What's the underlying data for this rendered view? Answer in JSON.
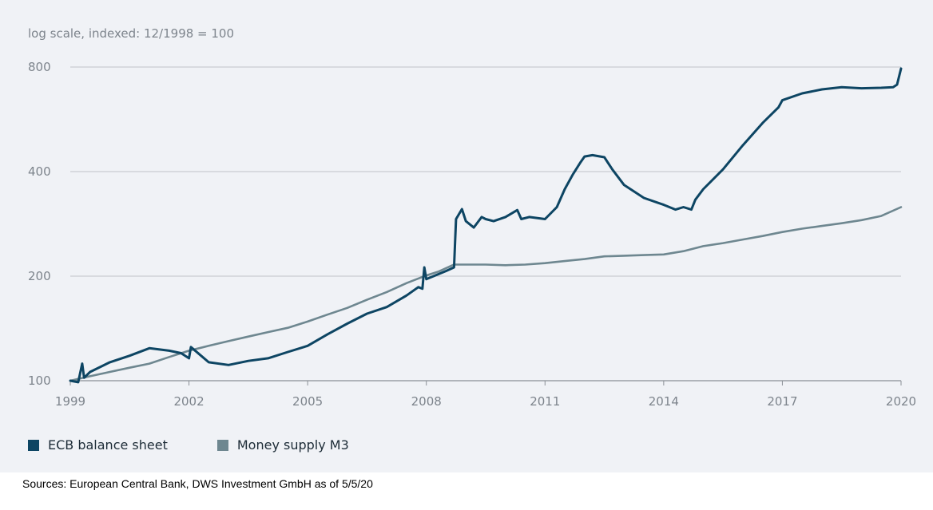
{
  "chart_data": {
    "type": "line",
    "subtitle": "log scale, indexed: 12/1998 = 100",
    "y_scale": "log",
    "ylim": [
      100,
      800
    ],
    "y_ticks": [
      100,
      200,
      400,
      800
    ],
    "y_tick_labels": [
      "100",
      "200",
      "400",
      "800"
    ],
    "xlim": [
      1999,
      2020
    ],
    "x_ticks": [
      1999,
      2002,
      2005,
      2008,
      2011,
      2014,
      2017,
      2020
    ],
    "x_tick_labels": [
      "1999",
      "2002",
      "2005",
      "2008",
      "2011",
      "2014",
      "2017",
      "2020"
    ],
    "grid": "horizontal",
    "legend": "bottom-left",
    "series": [
      {
        "name": "ECB balance sheet",
        "color": "#0d4563",
        "x": [
          1999.0,
          1999.2,
          1999.3,
          1999.35,
          1999.5,
          2000.0,
          2000.5,
          2001.0,
          2001.5,
          2001.8,
          2002.0,
          2002.05,
          2002.5,
          2003.0,
          2003.5,
          2004.0,
          2004.5,
          2005.0,
          2005.5,
          2006.0,
          2006.5,
          2007.0,
          2007.5,
          2007.8,
          2007.9,
          2007.95,
          2008.0,
          2008.5,
          2008.7,
          2008.75,
          2008.9,
          2009.0,
          2009.2,
          2009.4,
          2009.5,
          2009.7,
          2010.0,
          2010.3,
          2010.4,
          2010.6,
          2011.0,
          2011.3,
          2011.5,
          2011.7,
          2011.9,
          2012.0,
          2012.2,
          2012.5,
          2012.7,
          2013.0,
          2013.5,
          2014.0,
          2014.3,
          2014.5,
          2014.7,
          2014.8,
          2015.0,
          2015.5,
          2016.0,
          2016.5,
          2016.9,
          2017.0,
          2017.5,
          2018.0,
          2018.5,
          2019.0,
          2019.5,
          2019.8,
          2019.9,
          2020.0
        ],
        "values": [
          100,
          99,
          112,
          102,
          106,
          113,
          118,
          124,
          122,
          120,
          116,
          125,
          113,
          111,
          114,
          116,
          121,
          126,
          136,
          146,
          156,
          163,
          176,
          186,
          184,
          212,
          196,
          207,
          212,
          292,
          312,
          288,
          276,
          296,
          292,
          288,
          296,
          310,
          292,
          296,
          292,
          316,
          356,
          392,
          426,
          442,
          446,
          440,
          406,
          366,
          336,
          321,
          311,
          316,
          311,
          332,
          356,
          406,
          476,
          552,
          612,
          642,
          672,
          690,
          700,
          695,
          697,
          700,
          712,
          792
        ]
      },
      {
        "name": "Money supply M3",
        "color": "#6e8790",
        "x": [
          1999.0,
          1999.5,
          2000.0,
          2000.5,
          2001.0,
          2001.5,
          2002.0,
          2002.5,
          2003.0,
          2003.5,
          2004.0,
          2004.5,
          2005.0,
          2005.5,
          2006.0,
          2006.5,
          2007.0,
          2007.5,
          2008.0,
          2008.3,
          2008.5,
          2008.7,
          2009.0,
          2009.5,
          2010.0,
          2010.5,
          2011.0,
          2011.5,
          2012.0,
          2012.5,
          2013.0,
          2013.5,
          2014.0,
          2014.5,
          2015.0,
          2015.5,
          2016.0,
          2016.5,
          2017.0,
          2017.5,
          2018.0,
          2018.5,
          2019.0,
          2019.5,
          2020.0
        ],
        "values": [
          100,
          103,
          106,
          109,
          112,
          117,
          122,
          126,
          130,
          134,
          138,
          142,
          148,
          155,
          162,
          171,
          180,
          191,
          201,
          206,
          211,
          216,
          216,
          216,
          215,
          216,
          218,
          221,
          224,
          228,
          229,
          230,
          231,
          236,
          244,
          249,
          255,
          261,
          268,
          274,
          279,
          284,
          290,
          298,
          316
        ]
      }
    ]
  },
  "legend_items": [
    {
      "label": "ECB balance sheet",
      "color": "#0d4563"
    },
    {
      "label": "Money supply M3",
      "color": "#6e8790"
    }
  ],
  "footer": {
    "source": "Sources: European Central Bank, DWS Investment GmbH as of 5/5/20"
  }
}
